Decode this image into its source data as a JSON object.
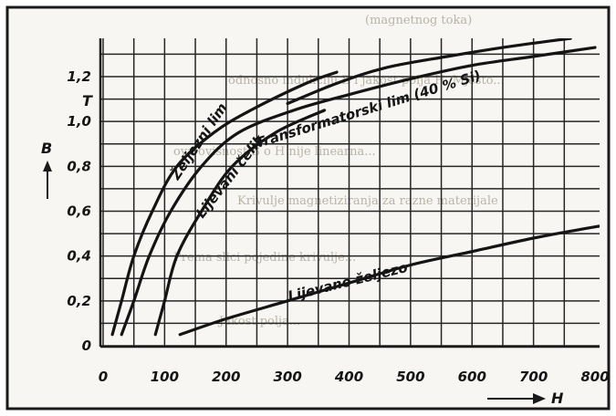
{
  "chart_data": {
    "type": "line",
    "title": "",
    "xlabel": "H",
    "ylabel": "B",
    "ylabel_unit": "T",
    "xlim": [
      0,
      800
    ],
    "ylim": [
      0,
      1.3
    ],
    "grid": true,
    "legend": "none",
    "x_ticks": [
      "0",
      "100",
      "200",
      "300",
      "400",
      "500",
      "600",
      "700",
      "800"
    ],
    "y_ticks": [
      "0",
      "0,2",
      "0,4",
      "0,6",
      "0,8",
      "1,0",
      "1,2"
    ],
    "series": [
      {
        "name": "Željezni lim",
        "points": [
          [
            15,
            0.05
          ],
          [
            30,
            0.2
          ],
          [
            50,
            0.4
          ],
          [
            80,
            0.6
          ],
          [
            120,
            0.8
          ],
          [
            180,
            0.95
          ],
          [
            240,
            1.05
          ],
          [
            330,
            1.17
          ],
          [
            380,
            1.22
          ]
        ]
      },
      {
        "name": "Transformatorski lim (40 % Si)",
        "points": [
          [
            300,
            1.08
          ],
          [
            380,
            1.17
          ],
          [
            460,
            1.24
          ],
          [
            560,
            1.29
          ],
          [
            650,
            1.33
          ],
          [
            730,
            1.36
          ],
          [
            760,
            1.37
          ]
        ]
      },
      {
        "name": "Lijevani čelik",
        "points": [
          [
            30,
            0.05
          ],
          [
            50,
            0.2
          ],
          [
            75,
            0.4
          ],
          [
            110,
            0.6
          ],
          [
            160,
            0.8
          ],
          [
            220,
            0.95
          ],
          [
            310,
            1.05
          ],
          [
            400,
            1.12
          ],
          [
            500,
            1.19
          ],
          [
            600,
            1.25
          ],
          [
            700,
            1.29
          ],
          [
            800,
            1.33
          ]
        ]
      },
      {
        "name": "Lijevano željezo",
        "points": [
          [
            85,
            0.05
          ],
          [
            100,
            0.2
          ],
          [
            120,
            0.4
          ],
          [
            160,
            0.6
          ],
          [
            210,
            0.8
          ],
          [
            280,
            0.95
          ],
          [
            360,
            1.05
          ]
        ]
      },
      {
        "name": "",
        "points": [
          [
            125,
            0.05
          ],
          [
            200,
            0.12
          ],
          [
            300,
            0.2
          ],
          [
            400,
            0.28
          ],
          [
            500,
            0.36
          ],
          [
            600,
            0.42
          ],
          [
            700,
            0.48
          ],
          [
            800,
            0.53
          ],
          [
            830,
            0.54
          ]
        ]
      }
    ]
  },
  "background_text": [
    "(magnetnog toka)",
    "odnosno indukciju B i jakost polja H. Mjesto...",
    "ova ovisnost B o H nije linearna...",
    "Krivulje magnetiziranja za razne materijale",
    "Prema slici pojedine krivulje...",
    "Jakost polja..."
  ],
  "colors": {
    "curve": "#141414",
    "grid": "#262626",
    "frame": "#1a1a1a",
    "background": "#f7f6f2",
    "background_text": "#b9b3a8"
  }
}
